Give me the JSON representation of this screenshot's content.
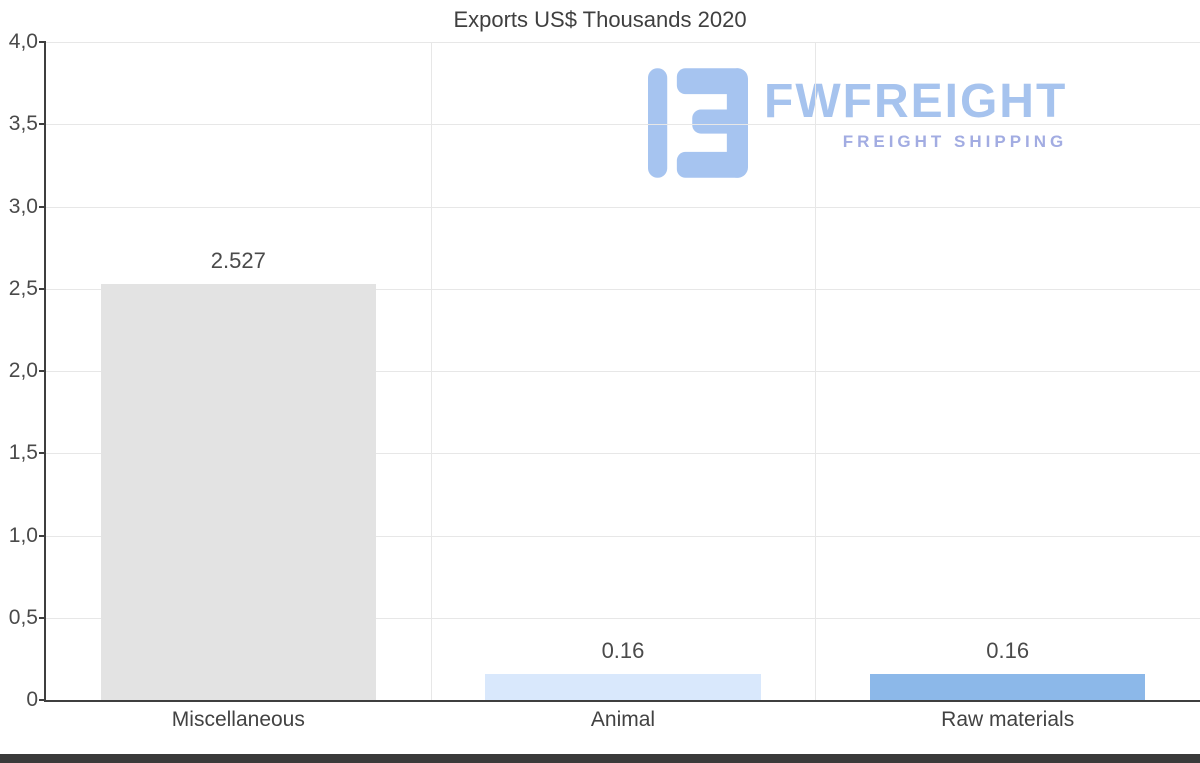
{
  "title": "Exports US$ Thousands 2020",
  "watermark": {
    "name": "FWFREIGHT",
    "tagline": "FREIGHT SHIPPING",
    "name_color": "#a6c3ee",
    "tagline_color": "#a2ace2",
    "icon": "fwfreight-logo-icon",
    "icon_color": "#a6c4f0"
  },
  "chart_data": {
    "type": "bar",
    "title": "Exports US$ Thousands 2020",
    "categories": [
      "Miscellaneous",
      "Animal",
      "Raw materials"
    ],
    "values": [
      2.527,
      0.16,
      0.16
    ],
    "value_labels": [
      "2.527",
      "0.16",
      "0.16"
    ],
    "bar_colors": [
      "#e3e3e3",
      "#d9e8fc",
      "#8cb8e9"
    ],
    "ylim": [
      0,
      4
    ],
    "y_tick_values": [
      4,
      3.5,
      3,
      2.5,
      2,
      1.5,
      1,
      0.5,
      0
    ],
    "y_tick_labels": [
      "4,0",
      "3,5",
      "3,0",
      "2,5",
      "2,0",
      "1,5",
      "1,0",
      "0,5",
      "0"
    ],
    "grid": true,
    "legend": false,
    "axis_color": "#3f3f3f",
    "gridline_color": "#e7e7e7",
    "label_color": "#4a4a4a"
  }
}
